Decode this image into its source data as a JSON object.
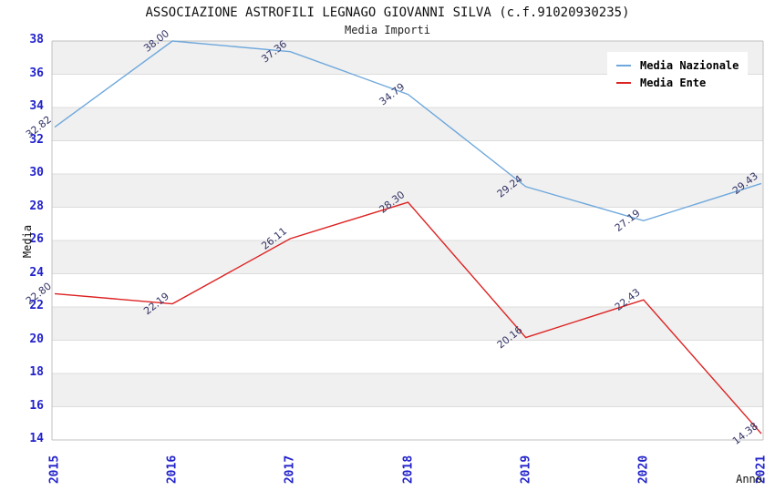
{
  "header": {
    "title": "ASSOCIAZIONE ASTROFILI LEGNAGO GIOVANNI SILVA (c.f.91020930235)",
    "subtitle": "Media Importi"
  },
  "colors": {
    "national_series": "#6fa8dc",
    "entity_series": "#dd2222",
    "tick_labels": "#2222cc",
    "band_fill": "#f0f0f0",
    "gridline": "#dcdcdc",
    "border": "#c0c0c0",
    "data_label": "#333366"
  },
  "chart_data": {
    "type": "line",
    "title": "ASSOCIAZIONE ASTROFILI LEGNAGO GIOVANNI SILVA (c.f.91020930235)",
    "subtitle": "Media Importi",
    "xlabel": "Anno",
    "ylabel": "Media",
    "x": [
      2015,
      2016,
      2017,
      2018,
      2019,
      2020,
      2021
    ],
    "series": [
      {
        "name": "Media Nazionale",
        "color": "#6fa8dc",
        "values": [
          32.82,
          38.0,
          37.36,
          34.79,
          29.24,
          27.19,
          29.43
        ]
      },
      {
        "name": "Media Ente",
        "color": "#dd2222",
        "values": [
          22.8,
          22.19,
          26.11,
          28.3,
          20.16,
          22.43,
          14.38
        ]
      }
    ],
    "ylim": [
      14,
      38
    ],
    "ytick_step": 2,
    "grid": "horizontal-bands",
    "legend_position": "top-right",
    "data_labels": "two-decimals-rotated"
  }
}
